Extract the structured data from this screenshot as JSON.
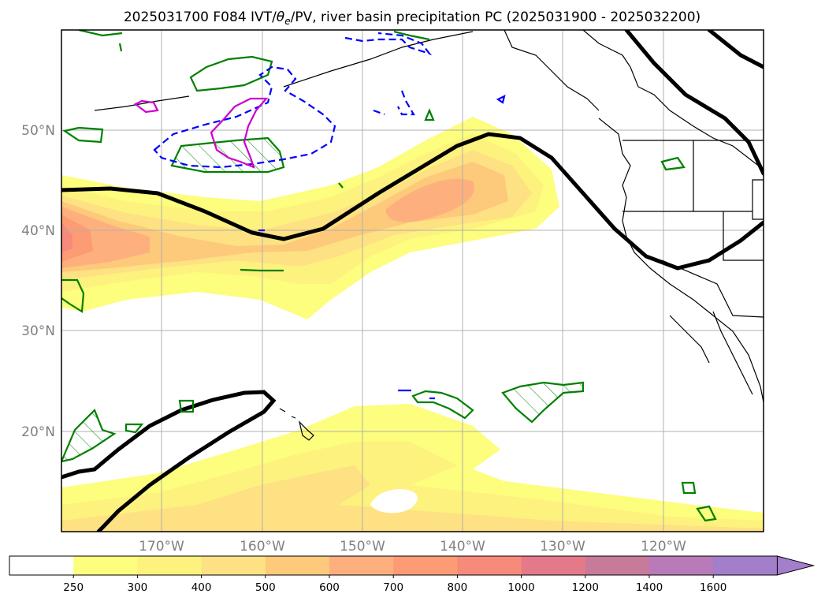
{
  "chart_data": {
    "type": "map-contour",
    "title": "2025031700 F084 IVT/θe/PV, river basin precipitation PC (2025031900 - 2025032200)",
    "title_parts": {
      "prefix": "2025031700 F084 IVT/",
      "theta": "θ",
      "theta_sub": "e",
      "suffix": "/PV, river basin precipitation PC (2025031900 - 2025032200)"
    },
    "map_extent": {
      "lon_min": -180,
      "lon_max": -110,
      "lat_min": 10,
      "lat_max": 60
    },
    "lat_ticks": [
      {
        "value": 50,
        "label": "50°N"
      },
      {
        "value": 40,
        "label": "40°N"
      },
      {
        "value": 30,
        "label": "30°N"
      },
      {
        "value": 20,
        "label": "20°N"
      }
    ],
    "lon_ticks": [
      {
        "value": -170,
        "label": "170°W"
      },
      {
        "value": -160,
        "label": "160°W"
      },
      {
        "value": -150,
        "label": "150°W"
      },
      {
        "value": -140,
        "label": "140°W"
      },
      {
        "value": -130,
        "label": "130°W"
      },
      {
        "value": -120,
        "label": "120°W"
      }
    ],
    "grid": true,
    "ivt_levels": [
      250,
      300,
      400,
      500,
      600,
      700,
      800,
      1000,
      1200,
      1400,
      1600
    ],
    "ivt_colors": [
      "#ffffff",
      "#fdfd7e",
      "#fdf27d",
      "#fde183",
      "#fdc97b",
      "#fdb07e",
      "#fd9b75",
      "#f78a7a",
      "#e4798a",
      "#c87a9a",
      "#b87ab8",
      "#a37ecb"
    ],
    "colorbar": {
      "extend": "max",
      "orientation": "horizontal",
      "location": "bottom"
    },
    "contour_colors": {
      "theta_e": "#000000",
      "pv_positive": "#008000",
      "pv_negative": "#0000ff",
      "pv_high": "#cc00cc"
    }
  }
}
